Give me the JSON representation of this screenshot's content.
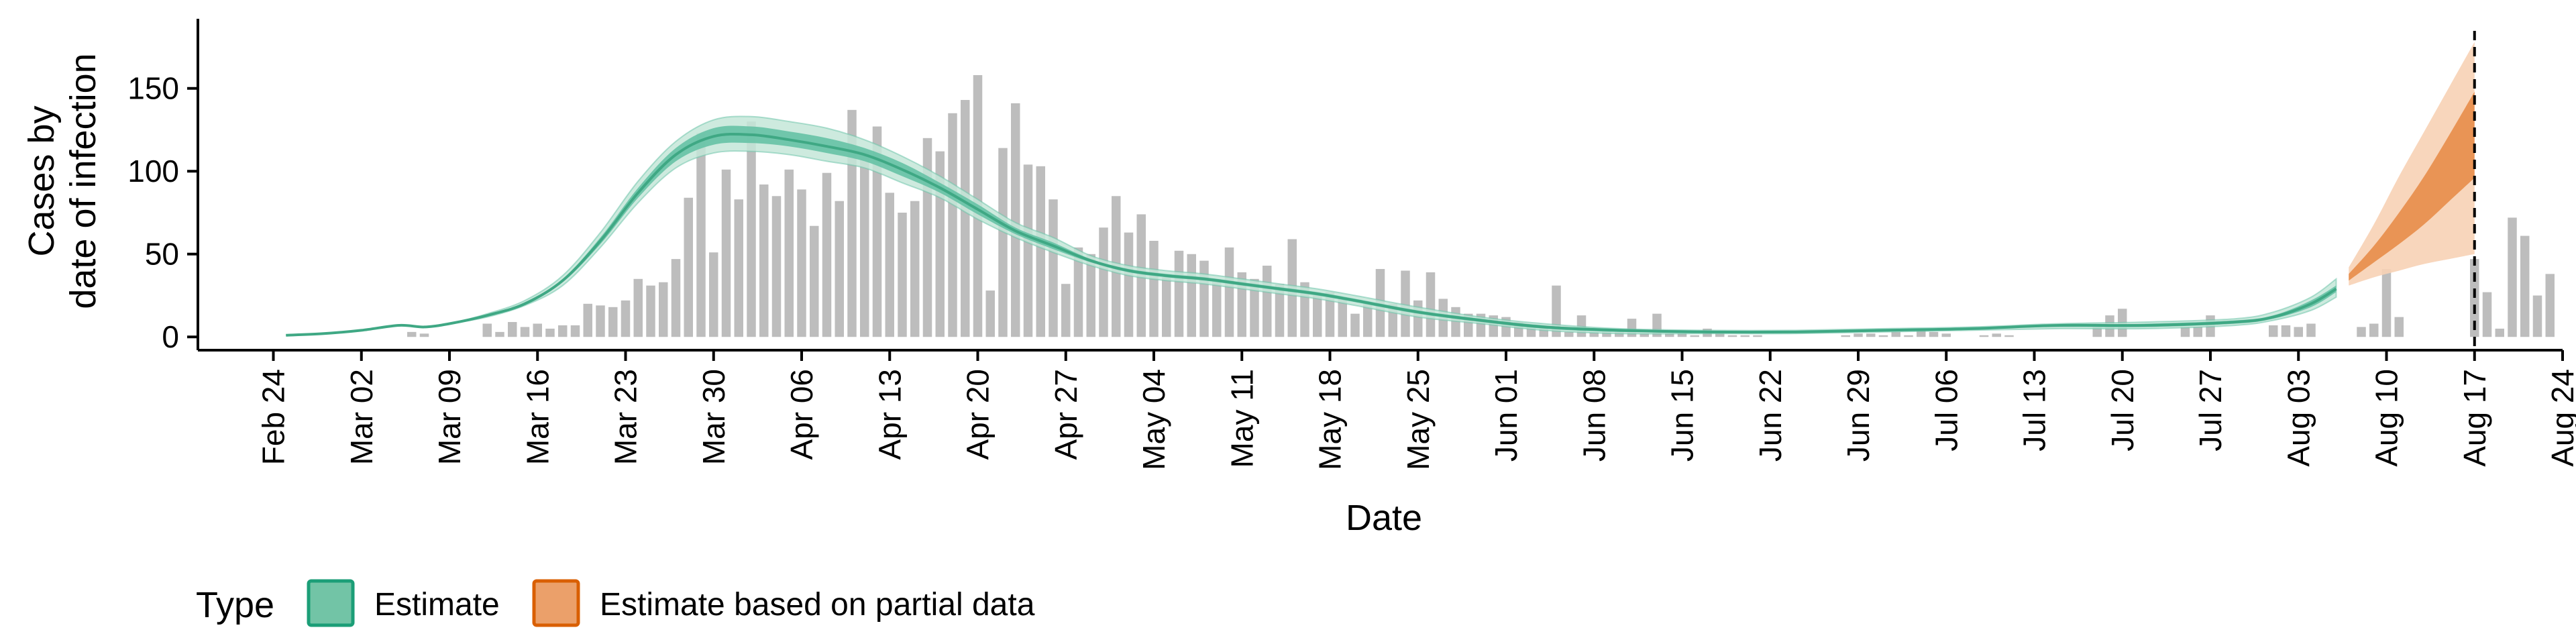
{
  "chart_data": {
    "type": "bar",
    "xlabel": "Date",
    "ylabel_lines": [
      "Cases by",
      "date of infection"
    ],
    "y_ticks": [
      0,
      50,
      100,
      150
    ],
    "ylim": [
      -8,
      192
    ],
    "x_range": [
      "2020-02-18",
      "2020-08-24"
    ],
    "x_ticks": [
      {
        "date": "2020-02-24",
        "label": "Feb 24"
      },
      {
        "date": "2020-03-02",
        "label": "Mar 02"
      },
      {
        "date": "2020-03-09",
        "label": "Mar 09"
      },
      {
        "date": "2020-03-16",
        "label": "Mar 16"
      },
      {
        "date": "2020-03-23",
        "label": "Mar 23"
      },
      {
        "date": "2020-03-30",
        "label": "Mar 30"
      },
      {
        "date": "2020-04-06",
        "label": "Apr 06"
      },
      {
        "date": "2020-04-13",
        "label": "Apr 13"
      },
      {
        "date": "2020-04-20",
        "label": "Apr 20"
      },
      {
        "date": "2020-04-27",
        "label": "Apr 27"
      },
      {
        "date": "2020-05-04",
        "label": "May 04"
      },
      {
        "date": "2020-05-11",
        "label": "May 11"
      },
      {
        "date": "2020-05-18",
        "label": "May 18"
      },
      {
        "date": "2020-05-25",
        "label": "May 25"
      },
      {
        "date": "2020-06-01",
        "label": "Jun 01"
      },
      {
        "date": "2020-06-08",
        "label": "Jun 08"
      },
      {
        "date": "2020-06-15",
        "label": "Jun 15"
      },
      {
        "date": "2020-06-22",
        "label": "Jun 22"
      },
      {
        "date": "2020-06-29",
        "label": "Jun 29"
      },
      {
        "date": "2020-07-06",
        "label": "Jul 06"
      },
      {
        "date": "2020-07-13",
        "label": "Jul 13"
      },
      {
        "date": "2020-07-20",
        "label": "Jul 20"
      },
      {
        "date": "2020-07-27",
        "label": "Jul 27"
      },
      {
        "date": "2020-08-03",
        "label": "Aug 03"
      },
      {
        "date": "2020-08-10",
        "label": "Aug 10"
      },
      {
        "date": "2020-08-17",
        "label": "Aug 17"
      },
      {
        "date": "2020-08-24",
        "label": "Aug 24"
      }
    ],
    "vline_date": "2020-08-17",
    "bars": {
      "start_date": "2020-03-06",
      "values": [
        3,
        2,
        0,
        0,
        0,
        0,
        8,
        3,
        9,
        6,
        8,
        5,
        7,
        7,
        20,
        19,
        18,
        22,
        35,
        31,
        33,
        47,
        84,
        123,
        51,
        101,
        83,
        130,
        92,
        85,
        101,
        89,
        67,
        99,
        82,
        137,
        112,
        127,
        87,
        75,
        82,
        120,
        112,
        135,
        143,
        158,
        28,
        114,
        141,
        104,
        103,
        83,
        32,
        54,
        50,
        66,
        85,
        63,
        74,
        58,
        36,
        52,
        50,
        46,
        35,
        54,
        39,
        35,
        43,
        32,
        59,
        33,
        25,
        27,
        23,
        14,
        20,
        41,
        20,
        40,
        22,
        39,
        23,
        18,
        14,
        14,
        13,
        12,
        9,
        7,
        6,
        31,
        3,
        13,
        3,
        5,
        4,
        11,
        2,
        14,
        2,
        2,
        1,
        5,
        2,
        1,
        1,
        1,
        0,
        0,
        0,
        0,
        0,
        0,
        1,
        2,
        2,
        1,
        3,
        1,
        4,
        3,
        2,
        0,
        0,
        1,
        2,
        1,
        0,
        0,
        0,
        0,
        0,
        0,
        6,
        13,
        17,
        0,
        0,
        0,
        0,
        6,
        6,
        13,
        0,
        0,
        0,
        0,
        7,
        7,
        6,
        8,
        0,
        0,
        0,
        6,
        8,
        41,
        12,
        0,
        0,
        0,
        0,
        0,
        47,
        27,
        5,
        72,
        61,
        25,
        38
      ]
    },
    "estimate": {
      "dates": [
        "2020-02-25",
        "2020-02-28",
        "2020-03-02",
        "2020-03-05",
        "2020-03-07",
        "2020-03-09",
        "2020-03-12",
        "2020-03-15",
        "2020-03-18",
        "2020-03-21",
        "2020-03-24",
        "2020-03-27",
        "2020-03-30",
        "2020-04-02",
        "2020-04-05",
        "2020-04-08",
        "2020-04-11",
        "2020-04-14",
        "2020-04-17",
        "2020-04-20",
        "2020-04-23",
        "2020-04-26",
        "2020-04-29",
        "2020-05-02",
        "2020-05-05",
        "2020-05-08",
        "2020-05-11",
        "2020-05-14",
        "2020-05-17",
        "2020-05-20",
        "2020-05-25",
        "2020-05-30",
        "2020-06-04",
        "2020-06-10",
        "2020-06-17",
        "2020-06-24",
        "2020-07-01",
        "2020-07-08",
        "2020-07-15",
        "2020-07-22",
        "2020-07-29",
        "2020-08-01",
        "2020-08-04",
        "2020-08-06"
      ],
      "median": [
        1,
        2,
        4,
        7,
        6,
        8,
        13,
        20,
        34,
        58,
        87,
        110,
        121,
        122,
        119,
        115,
        110,
        101,
        90,
        77,
        64,
        55,
        46,
        40,
        37,
        35,
        32,
        29,
        26,
        22,
        15,
        10,
        6,
        4,
        3,
        3,
        4,
        5,
        7,
        7,
        9,
        12,
        20,
        29
      ],
      "inner_low": [
        1,
        2,
        4,
        7,
        6,
        8,
        13,
        20,
        33,
        56,
        84,
        106,
        116,
        117,
        115,
        111,
        106,
        97,
        87,
        74,
        62,
        53,
        45,
        39,
        36,
        34,
        31,
        28,
        25,
        21,
        14,
        9,
        5,
        3,
        3,
        3,
        4,
        5,
        6,
        6,
        8,
        11,
        18,
        27
      ],
      "inner_high": [
        1,
        2,
        4,
        7,
        6,
        8,
        13,
        21,
        35,
        60,
        90,
        114,
        126,
        127,
        124,
        120,
        114,
        105,
        93,
        80,
        66,
        57,
        47,
        41,
        38,
        36,
        33,
        30,
        27,
        23,
        16,
        11,
        7,
        4,
        3,
        3,
        4,
        5,
        7,
        8,
        10,
        13,
        22,
        31
      ],
      "outer_low": [
        1,
        2,
        4,
        7,
        6,
        8,
        12,
        19,
        31,
        54,
        81,
        102,
        111,
        112,
        110,
        106,
        102,
        93,
        84,
        71,
        60,
        51,
        43,
        37,
        34,
        32,
        29,
        26,
        23,
        19,
        12,
        8,
        4,
        2,
        2,
        2,
        3,
        4,
        5,
        5,
        7,
        10,
        16,
        24
      ],
      "outer_high": [
        1,
        2,
        4,
        7,
        6,
        8,
        14,
        22,
        37,
        63,
        94,
        118,
        131,
        133,
        130,
        126,
        119,
        109,
        97,
        83,
        69,
        60,
        49,
        43,
        40,
        38,
        35,
        32,
        29,
        25,
        18,
        12,
        8,
        5,
        4,
        4,
        5,
        6,
        8,
        9,
        11,
        15,
        24,
        35
      ]
    },
    "estimate_partial": {
      "dates": [
        "2020-08-07",
        "2020-08-09",
        "2020-08-11",
        "2020-08-13",
        "2020-08-15",
        "2020-08-17"
      ],
      "median": [
        36,
        50,
        66,
        83,
        104,
        126
      ],
      "inner_low": [
        34,
        45,
        56,
        68,
        82,
        96
      ],
      "inner_high": [
        38,
        55,
        75,
        97,
        122,
        148
      ],
      "outer_low": [
        31,
        36,
        40,
        44,
        47,
        50
      ],
      "outer_high": [
        42,
        68,
        97,
        124,
        151,
        178
      ]
    },
    "colors": {
      "bars": "#bdbdbd",
      "estimate_outer": "#c4e6d8",
      "estimate_inner": "#66c2a5",
      "estimate_line": "#3fa884",
      "partial_outer": "#f7d2b5",
      "partial_inner": "#e8904f",
      "legend_estimate_fill": "#72c4a6",
      "legend_estimate_stroke": "#1b9e77",
      "legend_partial_fill": "#eba06a",
      "legend_partial_stroke": "#d95f02"
    },
    "legend": {
      "title": "Type",
      "placement": "bottom-left",
      "items": [
        {
          "label": "Estimate",
          "key": "estimate"
        },
        {
          "label": "Estimate based on partial data",
          "key": "partial"
        }
      ]
    }
  }
}
